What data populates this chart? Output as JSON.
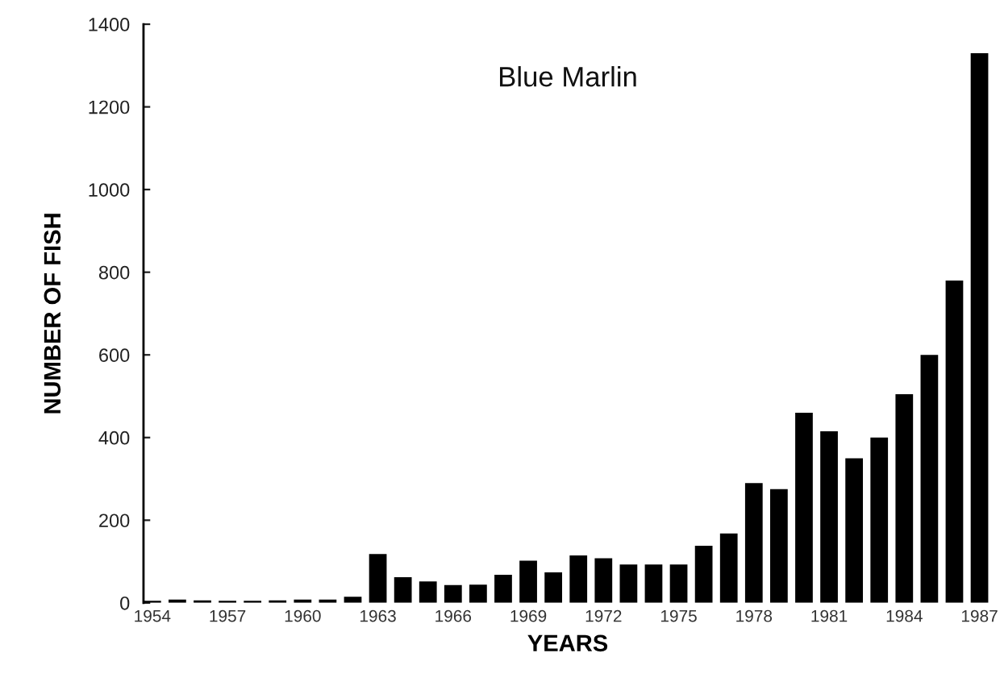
{
  "chart_data": {
    "type": "bar",
    "title": "Blue Marlin",
    "xlabel": "YEARS",
    "ylabel": "NUMBER OF FISH",
    "categories": [
      "1954",
      null,
      null,
      "1957",
      null,
      null,
      "1960",
      null,
      null,
      "1963",
      null,
      null,
      "1966",
      null,
      null,
      "1969",
      null,
      null,
      "1972",
      null,
      null,
      "1975",
      null,
      null,
      "1978",
      null,
      null,
      "1981",
      null,
      null,
      "1984",
      null,
      null,
      "1987"
    ],
    "values": [
      5,
      8,
      6,
      5,
      5,
      6,
      8,
      8,
      15,
      118,
      62,
      52,
      43,
      44,
      68,
      102,
      74,
      115,
      108,
      93,
      93,
      93,
      138,
      168,
      290,
      275,
      460,
      415,
      350,
      400,
      505,
      600,
      780,
      1330
    ],
    "color": "#000000",
    "ylim": [
      0,
      1400
    ],
    "yticks": [
      0,
      200,
      400,
      600,
      800,
      1000,
      1200,
      1400
    ]
  }
}
